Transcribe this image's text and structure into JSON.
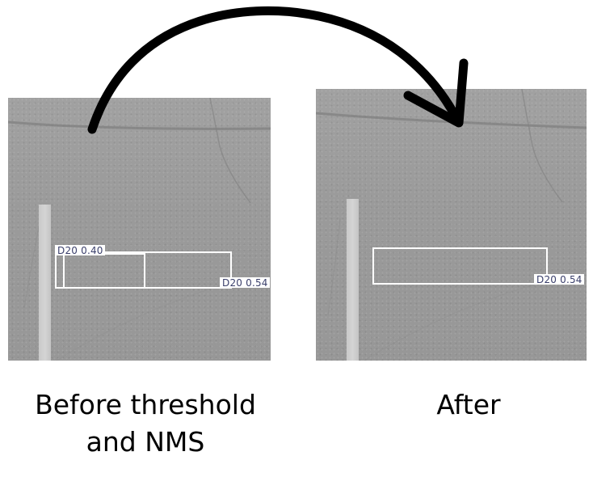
{
  "panels": {
    "before": {
      "detections": [
        {
          "label": "D20 0.40"
        },
        {
          "label": "D20 0.54"
        }
      ]
    },
    "after": {
      "detections": [
        {
          "label": "D20 0.54"
        }
      ]
    }
  },
  "captions": {
    "before": "Before threshold\nand NMS",
    "after": "After"
  },
  "colors": {
    "arrow": "#000000",
    "box": "#ffffff",
    "label_text": "#3a3f6b"
  }
}
